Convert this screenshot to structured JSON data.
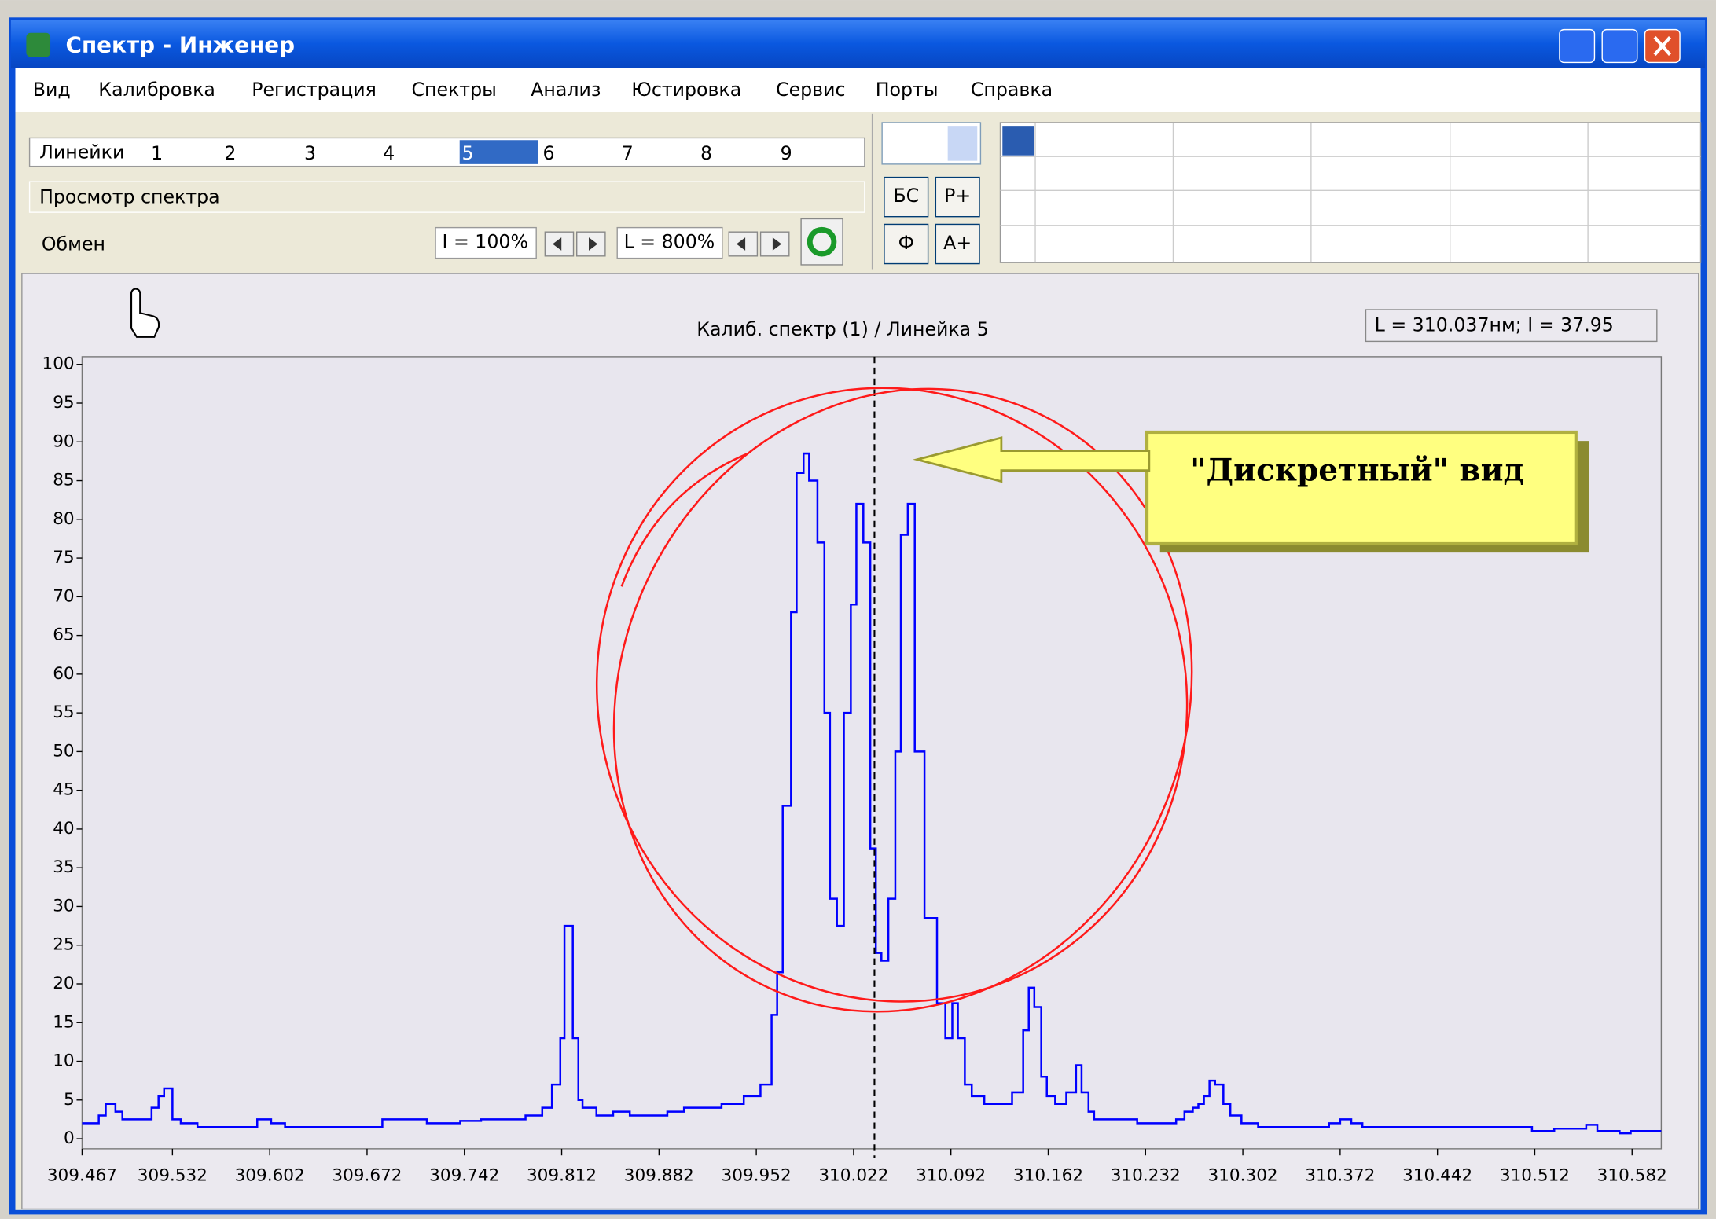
{
  "window": {
    "title": "Спектр  -  Инженер"
  },
  "menu": [
    "Вид",
    "Калибровка",
    "Регистрация",
    "Спектры",
    "Анализ",
    "Юстировка",
    "Сервис",
    "Порты",
    "Справка"
  ],
  "toolbar": {
    "lines_label": "Линейки",
    "lines": [
      "1",
      "2",
      "3",
      "4",
      "5",
      "6",
      "7",
      "8",
      "9"
    ],
    "mode": "Просмотр спектра",
    "exchange": "Обмен",
    "i_zoom": "I = 100%",
    "l_zoom": "L = 800%",
    "buttons": [
      "БС",
      "Р+",
      "Ф",
      "А+"
    ]
  },
  "callout": "\"Дискретный\" вид",
  "chart_data": {
    "type": "step",
    "title": "Калиб. спектр (1) / Линейка 5",
    "cursor": {
      "x": 310.037,
      "label": "L = 310.037нм; I = 37.95"
    },
    "xlim": [
      309.467,
      310.603
    ],
    "ylim": [
      -1.3,
      101
    ],
    "xticks": [
      309.467,
      309.532,
      309.602,
      309.672,
      309.742,
      309.812,
      309.882,
      309.952,
      310.022,
      310.092,
      310.162,
      310.232,
      310.302,
      310.372,
      310.442,
      310.512,
      310.582
    ],
    "yticks": [
      0,
      5,
      10,
      15,
      20,
      25,
      30,
      35,
      40,
      45,
      50,
      55,
      60,
      65,
      70,
      75,
      80,
      85,
      90,
      95,
      100
    ],
    "series": [
      {
        "color": "#0000ff",
        "x": [
          309.467,
          309.479,
          309.484,
          309.491,
          309.496,
          309.504,
          309.517,
          309.522,
          309.526,
          309.532,
          309.538,
          309.55,
          309.593,
          309.603,
          309.613,
          309.683,
          309.691,
          309.715,
          309.739,
          309.754,
          309.786,
          309.798,
          309.805,
          309.811,
          309.814,
          309.82,
          309.824,
          309.827,
          309.837,
          309.849,
          309.861,
          309.888,
          309.9,
          309.927,
          309.943,
          309.955,
          309.963,
          309.967,
          309.971,
          309.977,
          309.981,
          309.986,
          309.99,
          309.996,
          310.001,
          310.005,
          310.01,
          310.015,
          310.02,
          310.024,
          310.029,
          310.034,
          310.038,
          310.042,
          310.047,
          310.052,
          310.056,
          310.061,
          310.066,
          310.073,
          310.082,
          310.088,
          310.093,
          310.097,
          310.102,
          310.107,
          310.116,
          310.136,
          310.144,
          310.148,
          310.152,
          310.157,
          310.161,
          310.167,
          310.175,
          310.182,
          310.186,
          310.191,
          310.195,
          310.226,
          310.254,
          310.26,
          310.266,
          310.27,
          310.274,
          310.278,
          310.282,
          310.288,
          310.293,
          310.301,
          310.313,
          310.364,
          310.372,
          310.38,
          310.388,
          310.51,
          310.526,
          310.549,
          310.557,
          310.573,
          310.581
        ],
        "values": [
          2,
          3,
          4.5,
          3.5,
          2.5,
          2.5,
          4,
          5.5,
          6.5,
          2.5,
          2,
          1.5,
          2.5,
          2,
          1.5,
          2.5,
          2.5,
          2,
          2.3,
          2.5,
          3,
          4,
          7,
          13,
          27.5,
          13,
          5,
          4,
          3,
          3.5,
          3,
          3.5,
          4,
          4.5,
          5.5,
          7,
          16,
          21.5,
          43,
          68,
          86,
          88.5,
          85,
          77,
          55,
          31,
          27.5,
          55,
          69,
          82,
          77,
          37.5,
          24,
          23,
          31,
          50,
          78,
          82,
          50,
          28.5,
          17.5,
          13,
          17.5,
          13,
          7,
          5.5,
          4.5,
          6,
          14,
          19.5,
          17,
          8,
          5.5,
          4.5,
          6,
          9.5,
          6,
          3.5,
          2.5,
          2,
          2.5,
          3.5,
          4,
          4.5,
          5.5,
          7.5,
          7,
          4.5,
          3,
          2,
          1.5,
          2,
          2.5,
          2,
          1.5,
          1,
          1.3,
          1.8,
          1,
          0.7,
          1
        ]
      }
    ]
  }
}
